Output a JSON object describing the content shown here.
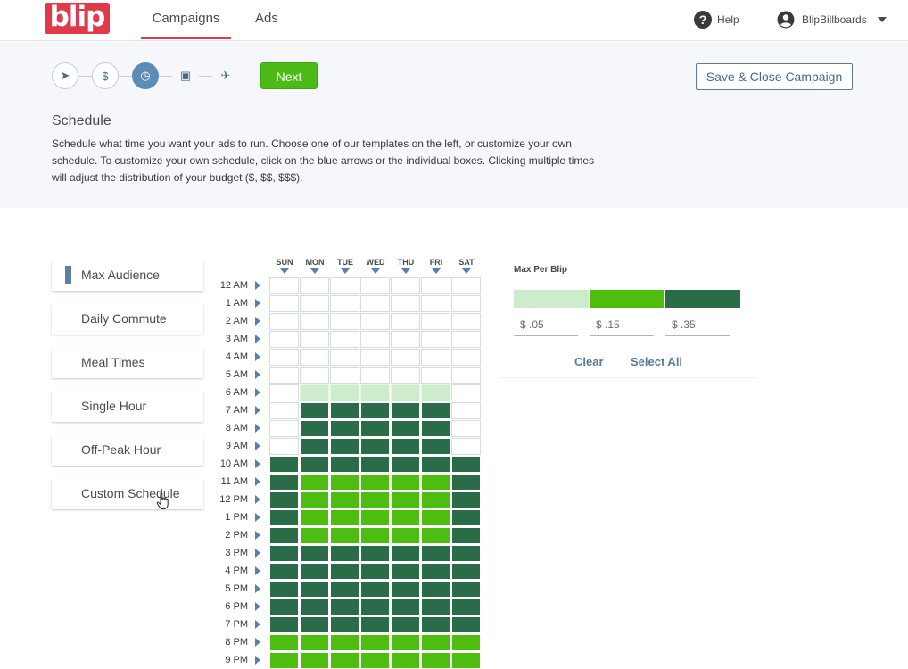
{
  "header": {
    "logo_text": "blip",
    "tabs": [
      {
        "label": "Campaigns",
        "active": true
      },
      {
        "label": "Ads",
        "active": false
      }
    ],
    "help_label": "Help",
    "help_icon": "question-circle-icon",
    "account_name": "BlipBillboards",
    "account_icon": "user-circle-icon"
  },
  "wizard": {
    "steps": [
      {
        "icon": "location-arrow-icon",
        "glyph": "➤",
        "active": false
      },
      {
        "icon": "dollar-icon",
        "glyph": "$",
        "active": false
      },
      {
        "icon": "clock-icon",
        "glyph": "◷",
        "active": true
      },
      {
        "icon": "image-icon",
        "glyph": "▣",
        "active": false
      },
      {
        "icon": "plane-icon",
        "glyph": "✈",
        "active": false
      }
    ],
    "next_label": "Next",
    "save_close_label": "Save & Close Campaign"
  },
  "schedule": {
    "title": "Schedule",
    "description": "Schedule what time you want your ads to run. Choose one of our templates on the left, or customize your own schedule. To customize your own schedule, click on the blue arrows or the individual boxes. Clicking multiple times will adjust the distribution of your budget ($, $$, $$$)."
  },
  "templates": [
    {
      "label": "Max Audience",
      "selected": true
    },
    {
      "label": "Daily Commute",
      "selected": false
    },
    {
      "label": "Meal Times",
      "selected": false
    },
    {
      "label": "Single Hour",
      "selected": false
    },
    {
      "label": "Off-Peak Hour",
      "selected": false
    },
    {
      "label": "Custom Schedule",
      "selected": false
    }
  ],
  "grid": {
    "days": [
      "SUN",
      "MON",
      "TUE",
      "WED",
      "THU",
      "FRI",
      "SAT"
    ],
    "hours": [
      "12 AM",
      "1 AM",
      "2 AM",
      "3 AM",
      "4 AM",
      "5 AM",
      "6 AM",
      "7 AM",
      "8 AM",
      "9 AM",
      "10 AM",
      "11 AM",
      "12 PM",
      "1 PM",
      "2 PM",
      "3 PM",
      "4 PM",
      "5 PM",
      "6 PM",
      "7 PM",
      "8 PM",
      "9 PM"
    ],
    "levels": [
      [
        0,
        0,
        0,
        0,
        0,
        0,
        0
      ],
      [
        0,
        0,
        0,
        0,
        0,
        0,
        0
      ],
      [
        0,
        0,
        0,
        0,
        0,
        0,
        0
      ],
      [
        0,
        0,
        0,
        0,
        0,
        0,
        0
      ],
      [
        0,
        0,
        0,
        0,
        0,
        0,
        0
      ],
      [
        0,
        0,
        0,
        0,
        0,
        0,
        0
      ],
      [
        0,
        1,
        1,
        1,
        1,
        1,
        0
      ],
      [
        0,
        3,
        3,
        3,
        3,
        3,
        0
      ],
      [
        0,
        3,
        3,
        3,
        3,
        3,
        0
      ],
      [
        0,
        3,
        3,
        3,
        3,
        3,
        0
      ],
      [
        3,
        3,
        3,
        3,
        3,
        3,
        3
      ],
      [
        3,
        2,
        2,
        2,
        2,
        2,
        3
      ],
      [
        3,
        2,
        2,
        2,
        2,
        2,
        3
      ],
      [
        3,
        2,
        2,
        2,
        2,
        2,
        3
      ],
      [
        3,
        2,
        2,
        2,
        2,
        2,
        3
      ],
      [
        3,
        3,
        3,
        3,
        3,
        3,
        3
      ],
      [
        3,
        3,
        3,
        3,
        3,
        3,
        3
      ],
      [
        3,
        3,
        3,
        3,
        3,
        3,
        3
      ],
      [
        3,
        3,
        3,
        3,
        3,
        3,
        3
      ],
      [
        3,
        3,
        3,
        3,
        3,
        3,
        3
      ],
      [
        2,
        2,
        2,
        2,
        2,
        2,
        2
      ],
      [
        2,
        2,
        2,
        2,
        2,
        2,
        2
      ]
    ]
  },
  "legend": {
    "title": "Max Per Blip",
    "colors": [
      "#cdeccb",
      "#4dbd10",
      "#2a6c48"
    ],
    "prices": [
      "$ .05",
      "$ .15",
      "$ .35"
    ],
    "clear_label": "Clear",
    "select_all_label": "Select All"
  }
}
